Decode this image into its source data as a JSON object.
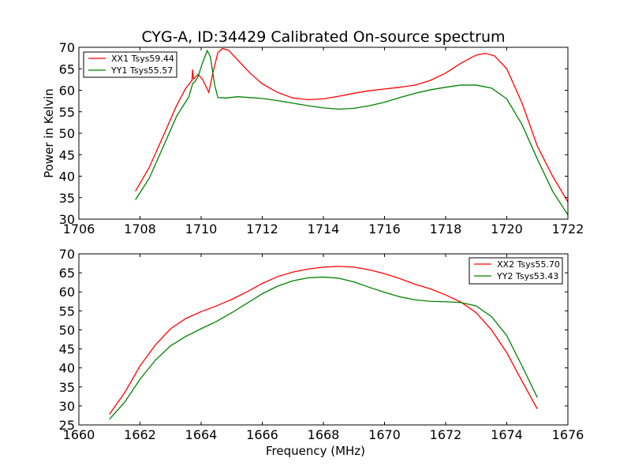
{
  "figure_title": "CYG-A, ID:34429 Calibrated On-source spectrum",
  "chart_data": [
    {
      "type": "line",
      "title": "CYG-A, ID:34429 Calibrated On-source spectrum",
      "xlabel": "",
      "ylabel": "Power in Kelvin",
      "xlim": [
        1706,
        1722
      ],
      "ylim": [
        30,
        70
      ],
      "xticks": [
        1706,
        1708,
        1710,
        1712,
        1714,
        1716,
        1718,
        1720,
        1722
      ],
      "yticks": [
        30,
        35,
        40,
        45,
        50,
        55,
        60,
        65,
        70
      ],
      "legend_position": "upper-left",
      "grid": false,
      "series": [
        {
          "name": "XX1 Tsys59.44",
          "color": "#ff0000",
          "points": [
            [
              1707.85,
              36.5
            ],
            [
              1708.3,
              42
            ],
            [
              1708.8,
              50
            ],
            [
              1709.2,
              56.5
            ],
            [
              1709.5,
              60.5
            ],
            [
              1709.7,
              62.3
            ],
            [
              1709.72,
              64.8
            ],
            [
              1709.75,
              62.6
            ],
            [
              1709.9,
              63.7
            ],
            [
              1710.05,
              62.5
            ],
            [
              1710.25,
              59.5
            ],
            [
              1710.4,
              64.5
            ],
            [
              1710.55,
              68.8
            ],
            [
              1710.7,
              69.7
            ],
            [
              1710.9,
              69.3
            ],
            [
              1711.2,
              67
            ],
            [
              1711.6,
              64
            ],
            [
              1712.0,
              61.5
            ],
            [
              1712.5,
              59.5
            ],
            [
              1713.0,
              58.2
            ],
            [
              1713.5,
              57.8
            ],
            [
              1714.0,
              58.0
            ],
            [
              1714.5,
              58.6
            ],
            [
              1715.0,
              59.3
            ],
            [
              1715.5,
              59.9
            ],
            [
              1716.0,
              60.3
            ],
            [
              1716.5,
              60.7
            ],
            [
              1717.0,
              61.2
            ],
            [
              1717.5,
              62.3
            ],
            [
              1718.0,
              64
            ],
            [
              1718.5,
              66.3
            ],
            [
              1719.0,
              68.2
            ],
            [
              1719.3,
              68.6
            ],
            [
              1719.6,
              68
            ],
            [
              1720.0,
              65
            ],
            [
              1720.5,
              57
            ],
            [
              1721.0,
              47
            ],
            [
              1721.5,
              40
            ],
            [
              1722.0,
              34
            ]
          ]
        },
        {
          "name": "YY1 Tsys55.57",
          "color": "#008000",
          "points": [
            [
              1707.85,
              34.5
            ],
            [
              1708.3,
              39.5
            ],
            [
              1708.8,
              47.5
            ],
            [
              1709.2,
              54
            ],
            [
              1709.6,
              58.5
            ],
            [
              1709.7,
              61
            ],
            [
              1709.73,
              61.6
            ],
            [
              1709.8,
              62
            ],
            [
              1709.9,
              63.2
            ],
            [
              1710.05,
              66.5
            ],
            [
              1710.2,
              69.2
            ],
            [
              1710.3,
              67.8
            ],
            [
              1710.45,
              61
            ],
            [
              1710.55,
              58.3
            ],
            [
              1710.8,
              58.2
            ],
            [
              1711.2,
              58.5
            ],
            [
              1712.0,
              58.1
            ],
            [
              1712.5,
              57.6
            ],
            [
              1713.0,
              57.0
            ],
            [
              1713.5,
              56.4
            ],
            [
              1714.0,
              55.9
            ],
            [
              1714.5,
              55.6
            ],
            [
              1715.0,
              55.8
            ],
            [
              1715.5,
              56.4
            ],
            [
              1716.0,
              57.2
            ],
            [
              1716.5,
              58.3
            ],
            [
              1717.0,
              59.3
            ],
            [
              1717.5,
              60.1
            ],
            [
              1718.0,
              60.7
            ],
            [
              1718.5,
              61.2
            ],
            [
              1719.0,
              61.2
            ],
            [
              1719.5,
              60.5
            ],
            [
              1720.0,
              58
            ],
            [
              1720.5,
              52
            ],
            [
              1721.0,
              44
            ],
            [
              1721.5,
              36.5
            ],
            [
              1722.0,
              31
            ]
          ]
        }
      ]
    },
    {
      "type": "line",
      "title": "",
      "xlabel": "Frequency (MHz)",
      "ylabel": "",
      "xlim": [
        1660,
        1676
      ],
      "ylim": [
        25,
        70
      ],
      "xticks": [
        1660,
        1662,
        1664,
        1666,
        1668,
        1670,
        1672,
        1674,
        1676
      ],
      "yticks": [
        25,
        30,
        35,
        40,
        45,
        50,
        55,
        60,
        65,
        70
      ],
      "legend_position": "upper-right",
      "grid": false,
      "series": [
        {
          "name": "XX2 Tsys55.70",
          "color": "#ff0000",
          "points": [
            [
              1661.0,
              27.8
            ],
            [
              1661.5,
              33.5
            ],
            [
              1662.0,
              40.5
            ],
            [
              1662.5,
              46
            ],
            [
              1663.0,
              50.3
            ],
            [
              1663.5,
              53
            ],
            [
              1664.0,
              54.8
            ],
            [
              1664.5,
              56.3
            ],
            [
              1665.0,
              58
            ],
            [
              1665.5,
              60
            ],
            [
              1666.0,
              62.2
            ],
            [
              1666.5,
              64
            ],
            [
              1667.0,
              65.2
            ],
            [
              1667.5,
              66
            ],
            [
              1668.0,
              66.5
            ],
            [
              1668.5,
              66.7
            ],
            [
              1669.0,
              66.5
            ],
            [
              1669.5,
              65.8
            ],
            [
              1670.0,
              64.8
            ],
            [
              1670.5,
              63.5
            ],
            [
              1671.0,
              62
            ],
            [
              1671.5,
              60.8
            ],
            [
              1672.0,
              59.2
            ],
            [
              1672.5,
              57.3
            ],
            [
              1673.0,
              54.5
            ],
            [
              1673.5,
              50
            ],
            [
              1674.0,
              44
            ],
            [
              1674.5,
              36.5
            ],
            [
              1675.0,
              29.2
            ]
          ]
        },
        {
          "name": "YY2 Tsys53.43",
          "color": "#008000",
          "points": [
            [
              1661.0,
              26.5
            ],
            [
              1661.5,
              31
            ],
            [
              1662.0,
              37
            ],
            [
              1662.5,
              42
            ],
            [
              1663.0,
              45.8
            ],
            [
              1663.5,
              48.3
            ],
            [
              1664.0,
              50.3
            ],
            [
              1664.5,
              52.2
            ],
            [
              1665.0,
              54.5
            ],
            [
              1665.5,
              57
            ],
            [
              1666.0,
              59.5
            ],
            [
              1666.5,
              61.5
            ],
            [
              1667.0,
              62.9
            ],
            [
              1667.5,
              63.7
            ],
            [
              1668.0,
              63.9
            ],
            [
              1668.5,
              63.6
            ],
            [
              1669.0,
              62.6
            ],
            [
              1669.5,
              61.2
            ],
            [
              1670.0,
              59.9
            ],
            [
              1670.5,
              58.7
            ],
            [
              1671.0,
              57.9
            ],
            [
              1671.5,
              57.5
            ],
            [
              1672.0,
              57.4
            ],
            [
              1672.5,
              57.2
            ],
            [
              1673.0,
              56.3
            ],
            [
              1673.5,
              53.5
            ],
            [
              1674.0,
              48.5
            ],
            [
              1674.5,
              40.5
            ],
            [
              1675.0,
              32.2
            ]
          ]
        }
      ]
    }
  ]
}
